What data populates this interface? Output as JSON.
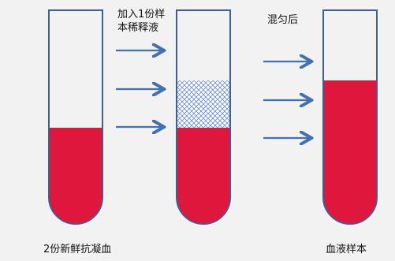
{
  "labels": {
    "step1_line1": "加入1份样",
    "step1_line2": "本稀释液",
    "step2": "混匀后",
    "left_tube": "2份新鲜抗凝血",
    "right_tube": "血液样本"
  },
  "colors": {
    "blood": "#e0173d",
    "arrow": "#4170b3",
    "tube_outline": "#3f5f8f",
    "tube_glass": "#ffffff",
    "diluent_pattern": "#6f8fd0",
    "background": "#f2f2f2"
  },
  "icons": {
    "arrow": "right-arrow-icon",
    "diluent_fill": "crosshatch-pattern"
  }
}
